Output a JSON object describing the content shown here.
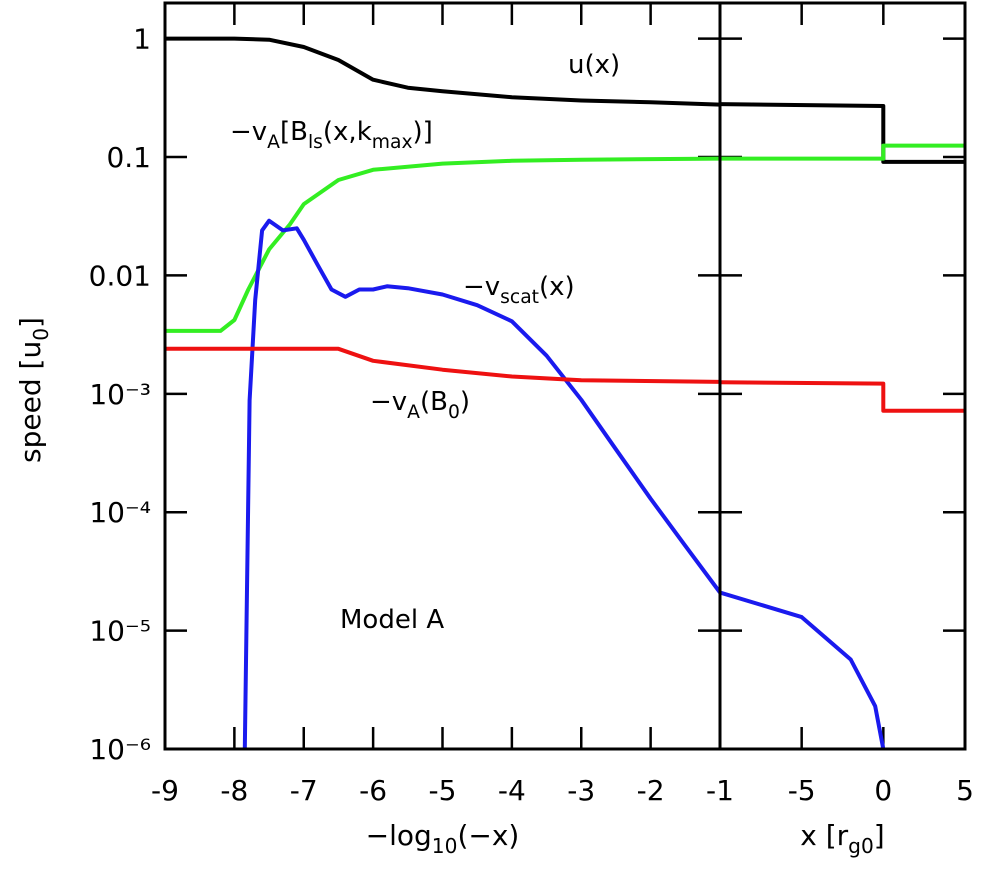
{
  "chart_data": [
    {
      "type": "line",
      "log_y": true,
      "ylabel_parts": [
        "speed [u",
        "0",
        "]"
      ],
      "xlabel_parts": [
        "−log",
        "10",
        "(−x)"
      ],
      "xlim": [
        -9,
        -1
      ],
      "xticks": [
        -9,
        -8,
        -7,
        -6,
        -5,
        -4,
        -3,
        -2,
        -1
      ],
      "ylim": [
        1e-06,
        2
      ],
      "yticks": [
        1,
        0.1,
        0.01,
        {
          "value": 0.001,
          "label": "10⁻³"
        },
        {
          "value": 0.0001,
          "label": "10⁻⁴"
        },
        {
          "value": 1e-05,
          "label": "10⁻⁵"
        },
        {
          "value": 1e-06,
          "label": "10⁻⁶"
        }
      ],
      "annotations": [
        {
          "parts": [
            "u(x)"
          ]
        },
        {
          "parts": [
            "−v",
            "A",
            "[B",
            "ls",
            "(x,k",
            "max",
            ")]"
          ]
        },
        {
          "parts": [
            "−v",
            "scat",
            "(x)"
          ]
        },
        {
          "parts": [
            "−v",
            "A",
            "(B",
            "0",
            ")"
          ]
        },
        {
          "parts": [
            "Model A"
          ]
        }
      ],
      "series": [
        {
          "color": "#000000",
          "x": [
            -9,
            -8,
            -7.5,
            -7,
            -6.5,
            -6,
            -5.5,
            -5,
            -4,
            -3,
            -2,
            -1
          ],
          "values": [
            1,
            1,
            0.98,
            0.85,
            0.66,
            0.45,
            0.385,
            0.36,
            0.32,
            0.3,
            0.29,
            0.277
          ]
        },
        {
          "color": "#33ee22",
          "x": [
            -9,
            -8.2,
            -8,
            -7.8,
            -7.5,
            -7.2,
            -7,
            -6.5,
            -6,
            -5,
            -4,
            -3,
            -1
          ],
          "values": [
            0.0034,
            0.0034,
            0.0042,
            0.0076,
            0.0166,
            0.027,
            0.04,
            0.064,
            0.078,
            0.088,
            0.093,
            0.095,
            0.097
          ]
        },
        {
          "color": "#1a1aee",
          "x": [
            -7.85,
            -7.78,
            -7.7,
            -7.6,
            -7.5,
            -7.3,
            -7.1,
            -7,
            -6.8,
            -6.6,
            -6.4,
            -6.2,
            -6,
            -5.8,
            -5.5,
            -5,
            -4.5,
            -4,
            -3.5,
            -3,
            -2.5,
            -2,
            -1.5,
            -1
          ],
          "values": [
            1e-06,
            0.00088,
            0.0062,
            0.024,
            0.029,
            0.024,
            0.025,
            0.02,
            0.0123,
            0.0076,
            0.0066,
            0.0076,
            0.0076,
            0.0081,
            0.0078,
            0.0069,
            0.0056,
            0.0041,
            0.0021,
            0.00089,
            0.00034,
            0.00013,
            5.2e-05,
            2.1e-05
          ]
        },
        {
          "color": "#ee1111",
          "x": [
            -9,
            -6.5,
            -6,
            -5,
            -4,
            -3,
            -1
          ],
          "values": [
            0.0024,
            0.0024,
            0.0019,
            0.0016,
            0.0014,
            0.0013,
            0.00126
          ]
        }
      ]
    },
    {
      "type": "line",
      "log_y": true,
      "xlabel_parts": [
        "x [r",
        "g0",
        "]"
      ],
      "xlim": [
        -10,
        5
      ],
      "xticks": [
        -5,
        0,
        5
      ],
      "ylim": [
        1e-06,
        2
      ],
      "yticks": [
        1,
        0.1,
        0.01,
        0.001,
        0.0001,
        1e-05,
        1e-06
      ],
      "series": [
        {
          "color": "#000000",
          "x": [
            -10,
            0,
            0,
            5
          ],
          "values": [
            0.28,
            0.27,
            0.091,
            0.091
          ]
        },
        {
          "color": "#33ee22",
          "x": [
            -10,
            0,
            0,
            5
          ],
          "values": [
            0.097,
            0.097,
            0.125,
            0.125
          ]
        },
        {
          "color": "#1a1aee",
          "x": [
            -10,
            -5,
            -2,
            -0.5,
            0
          ],
          "values": [
            2.1e-05,
            1.3e-05,
            5.7e-06,
            2.3e-06,
            1e-06
          ]
        },
        {
          "color": "#ee1111",
          "x": [
            -10,
            0,
            0,
            5
          ],
          "values": [
            0.00125,
            0.00122,
            0.00072,
            0.00072
          ]
        }
      ]
    }
  ]
}
